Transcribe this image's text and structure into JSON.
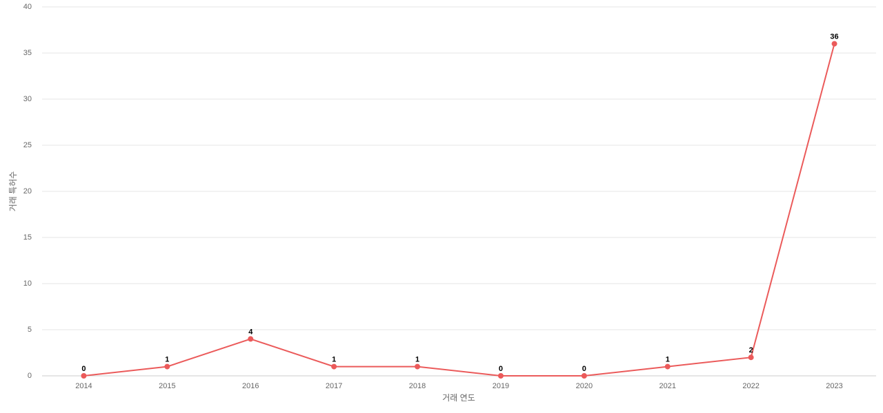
{
  "chart_data": {
    "type": "line",
    "x_label": "거래 연도",
    "y_label": "거래 특허수",
    "categories": [
      "2014",
      "2015",
      "2016",
      "2017",
      "2018",
      "2019",
      "2020",
      "2021",
      "2022",
      "2023"
    ],
    "values": [
      0,
      1,
      4,
      1,
      1,
      0,
      0,
      1,
      2,
      36
    ],
    "color": "#eb5a5a",
    "ylim": [
      0,
      40
    ],
    "yticks": [
      0,
      5,
      10,
      15,
      20,
      25,
      30,
      35,
      40
    ],
    "grid": true
  }
}
